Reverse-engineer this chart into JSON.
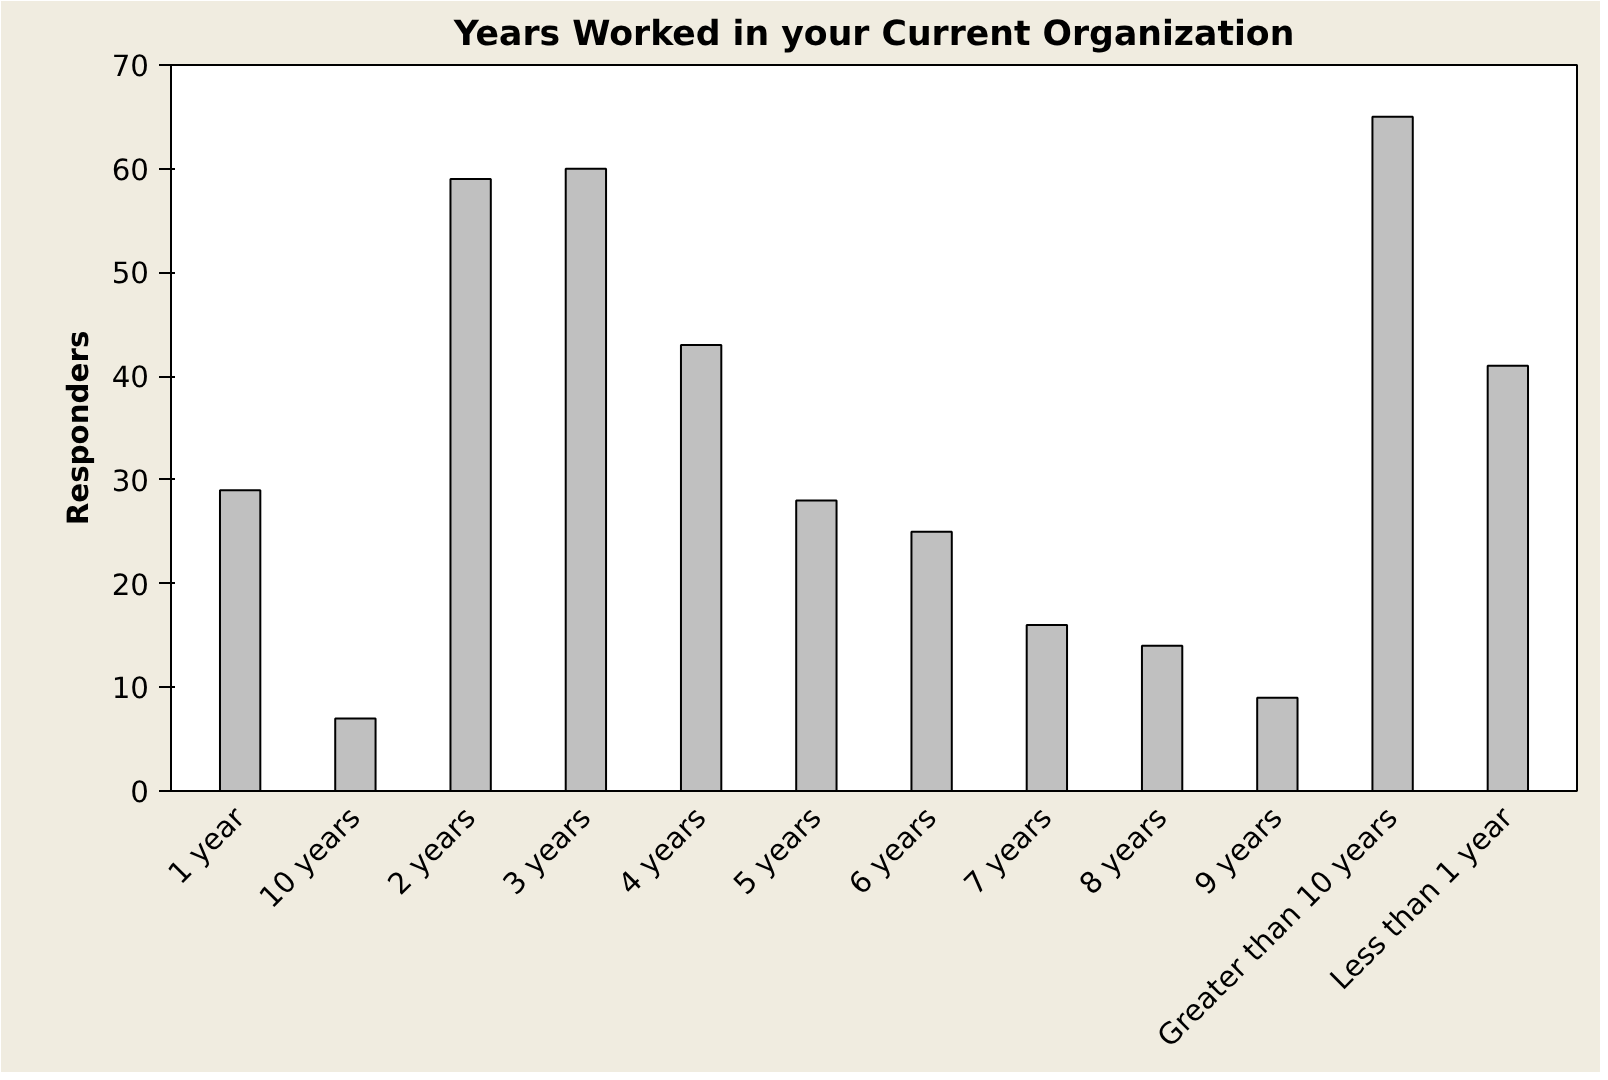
{
  "chart_data": {
    "type": "bar",
    "title": "Years Worked in your Current Organization",
    "ylabel": "Responders",
    "categories": [
      "1 year",
      "10 years",
      "2 years",
      "3 years",
      "4 years",
      "5 years",
      "6 years",
      "7 years",
      "8 years",
      "9 years",
      "Greater than 10 years",
      "Less than 1 year"
    ],
    "values": [
      29,
      7,
      59,
      60,
      43,
      28,
      25,
      16,
      14,
      9,
      65,
      41
    ],
    "color": "#c0c0c0",
    "ylim": [
      0,
      70
    ],
    "yticks": [
      0,
      10,
      20,
      30,
      40,
      50,
      60,
      70
    ]
  }
}
